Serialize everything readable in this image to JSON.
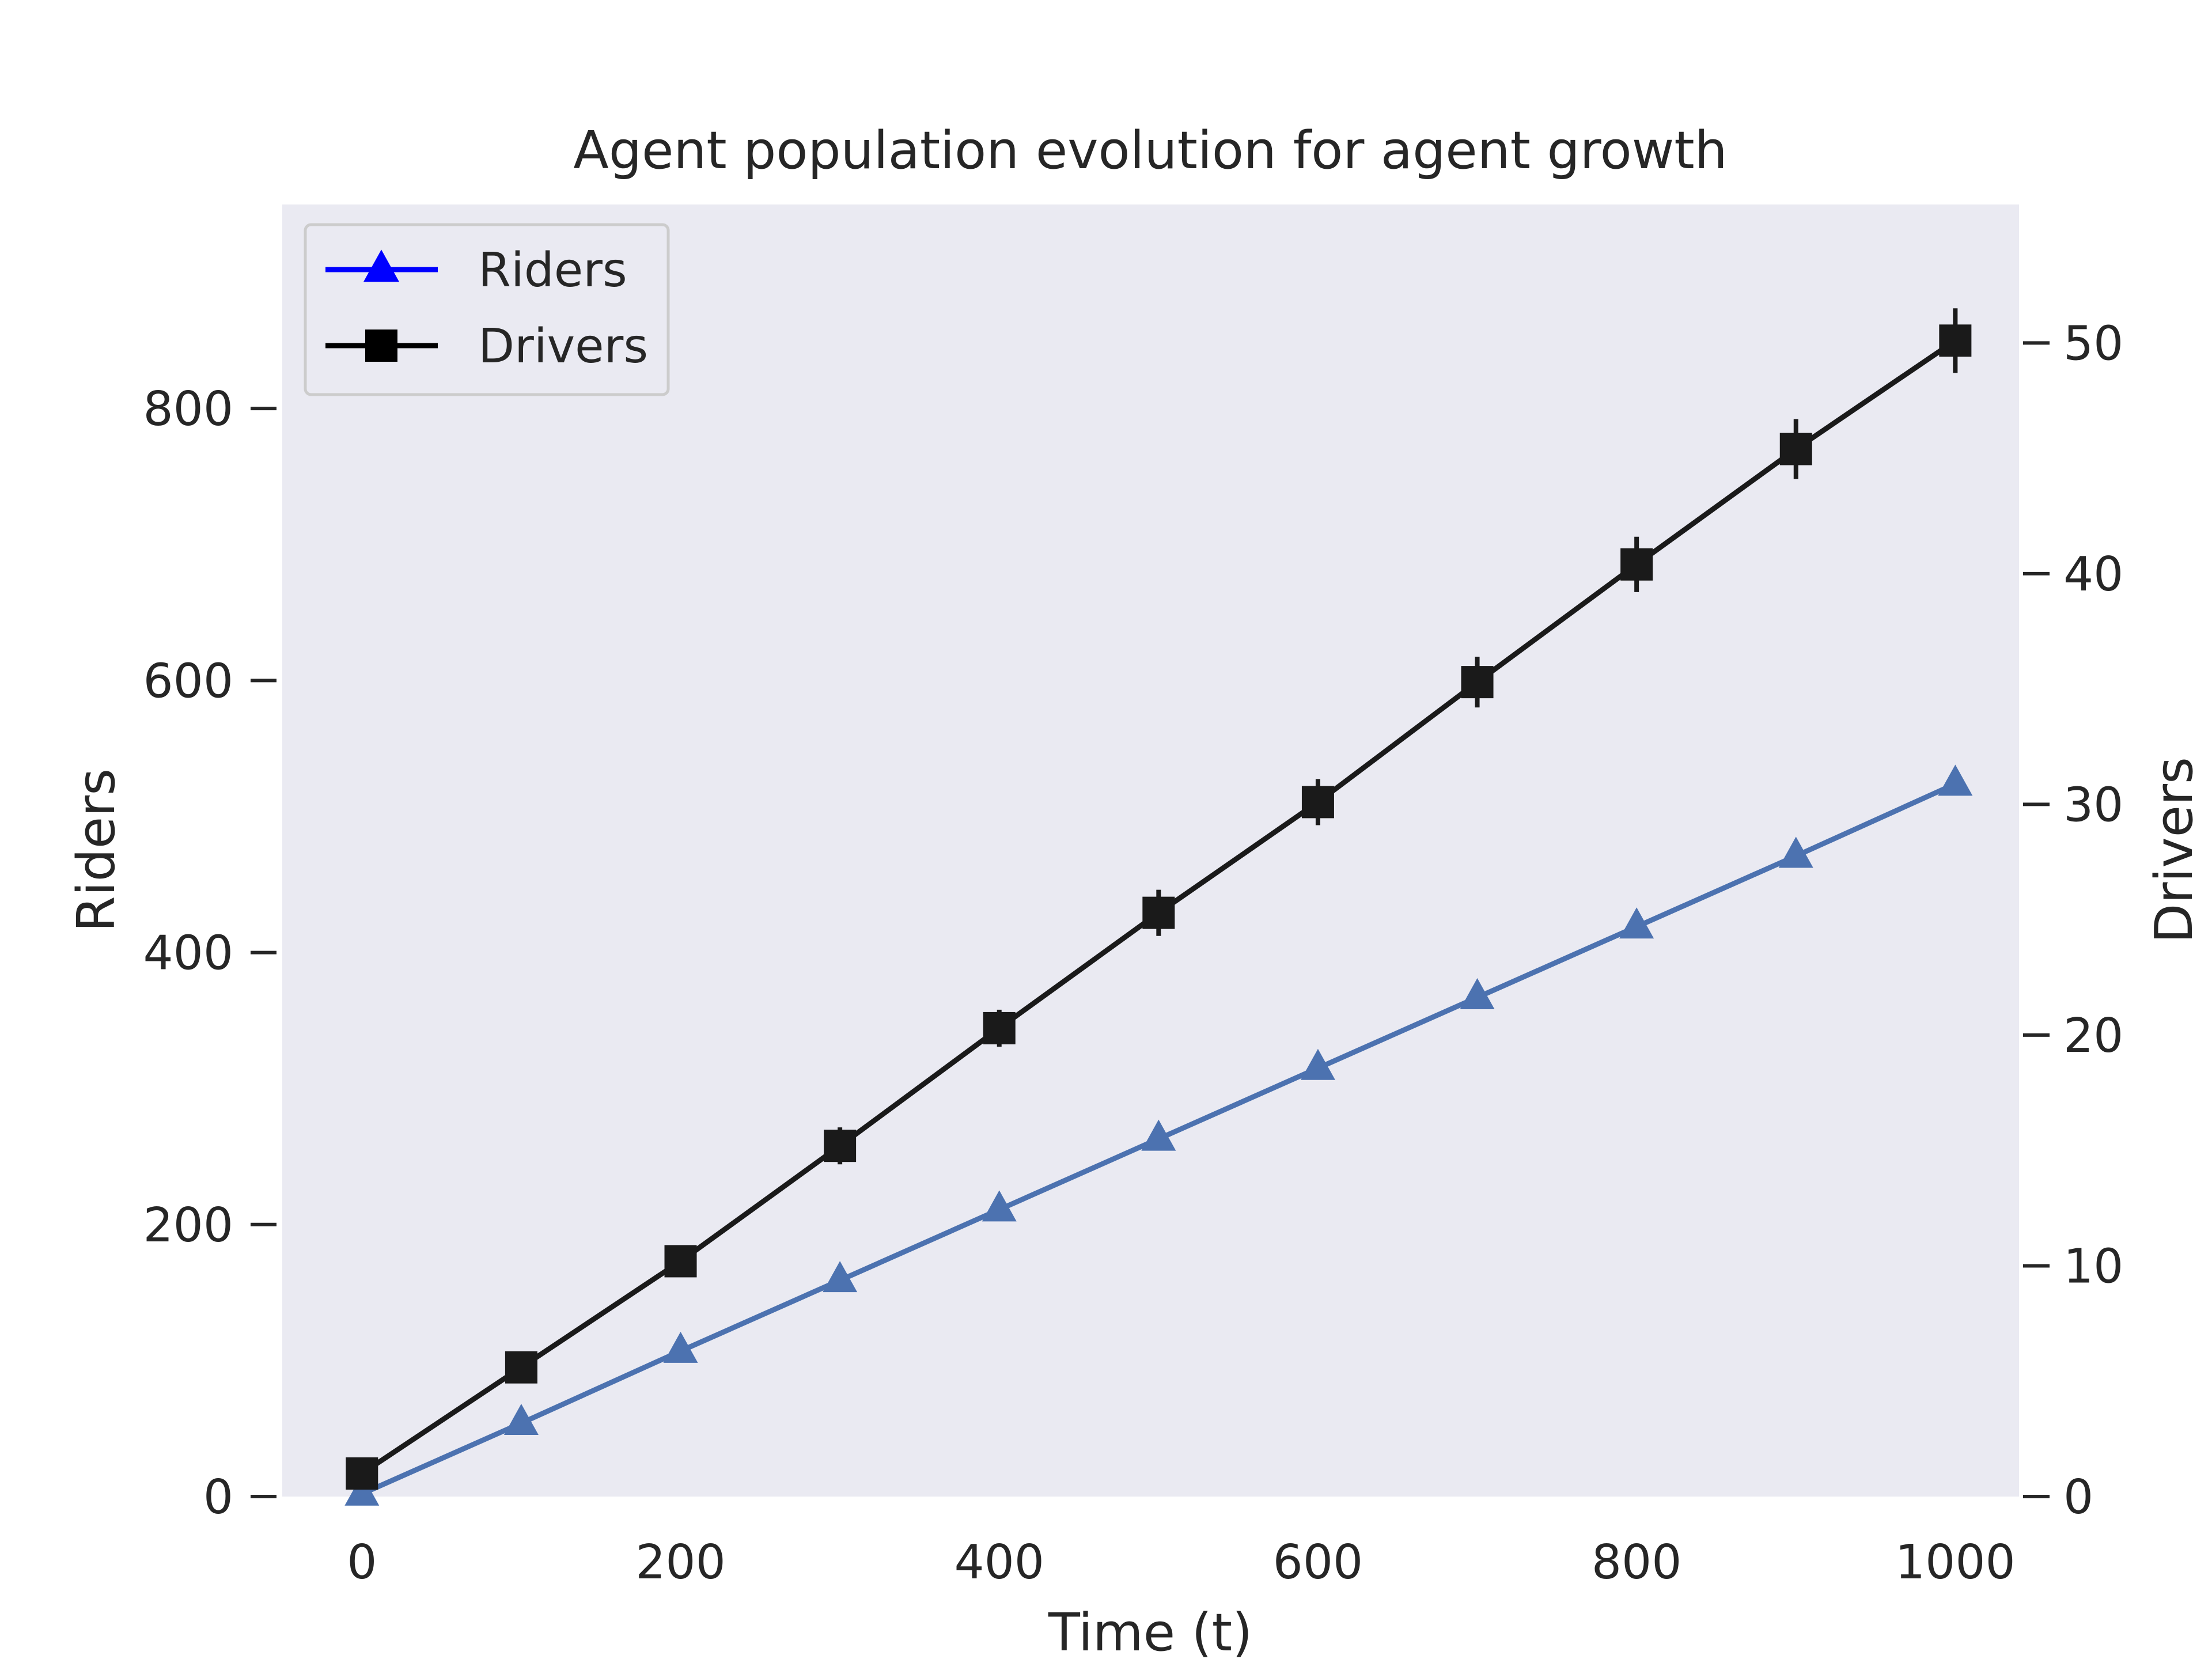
{
  "chart_data": {
    "type": "line",
    "title": "Agent population evolution for agent growth",
    "xlabel": "Time (t)",
    "ylabel": "Riders",
    "y2label": "Drivers",
    "xlim": [
      -50,
      1040
    ],
    "ylim": [
      0,
      950
    ],
    "y2lim": [
      0,
      56
    ],
    "x_ticks": [
      0,
      200,
      400,
      600,
      800,
      1000
    ],
    "y_ticks": [
      0,
      200,
      400,
      600,
      800
    ],
    "y2_ticks": [
      0,
      10,
      20,
      30,
      40,
      50
    ],
    "grid": false,
    "legend_position": "top-left",
    "background": "#eaeaf2",
    "series": [
      {
        "name": "Riders",
        "axis": "left",
        "marker": "triangle",
        "color": "#4c72b0",
        "legend_color": "#0000ff",
        "x": [
          0,
          100,
          200,
          300,
          400,
          500,
          600,
          700,
          800,
          900,
          1000
        ],
        "values": [
          2,
          54,
          107,
          159,
          211,
          263,
          315,
          367,
          419,
          471,
          524
        ]
      },
      {
        "name": "Drivers",
        "axis": "right",
        "marker": "square",
        "color": "#1a1a1a",
        "legend_color": "#000000",
        "x": [
          0,
          100,
          200,
          300,
          400,
          500,
          600,
          700,
          800,
          900,
          1000
        ],
        "values": [
          1.0,
          5.6,
          10.2,
          15.2,
          20.3,
          25.3,
          30.1,
          35.3,
          40.4,
          45.4,
          50.1
        ],
        "error": [
          0.3,
          0.6,
          0.6,
          0.8,
          0.8,
          1.0,
          1.0,
          1.1,
          1.2,
          1.3,
          1.4
        ]
      }
    ]
  }
}
